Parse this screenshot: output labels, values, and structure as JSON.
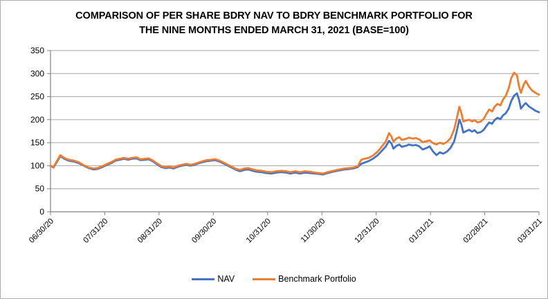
{
  "title_lines": [
    "COMPARISON OF PER SHARE BDRY NAV TO BDRY BENCHMARK PORTFOLIO FOR",
    "THE NINE MONTHS ENDED MARCH 31, 2021 (BASE=100)"
  ],
  "colors": {
    "grid": "#a6a6a6",
    "axis": "#808080",
    "nav_blue": "#4472C4",
    "benchmark_orange": "#ED7D31"
  },
  "chart_data": {
    "type": "line",
    "title": "COMPARISON OF PER SHARE BDRY NAV TO BDRY BENCHMARK PORTFOLIO FOR THE NINE MONTHS ENDED MARCH 31, 2021 (BASE=100)",
    "xlabel": "",
    "ylabel": "",
    "ylim": [
      0,
      350
    ],
    "y_ticks": [
      0,
      50,
      100,
      150,
      200,
      250,
      300,
      350
    ],
    "x_tick_labels": [
      "06/30/20",
      "07/31/20",
      "08/31/20",
      "09/30/20",
      "10/31/20",
      "11/30/20",
      "12/31/20",
      "01/31/21",
      "02/28/21",
      "03/31/21"
    ],
    "grid": true,
    "legend_position": "bottom",
    "x_base_value": 100,
    "x": [
      0.0,
      0.006,
      0.014,
      0.02,
      0.028,
      0.037,
      0.048,
      0.057,
      0.068,
      0.078,
      0.088,
      0.096,
      0.106,
      0.116,
      0.125,
      0.133,
      0.142,
      0.15,
      0.159,
      0.167,
      0.176,
      0.184,
      0.193,
      0.201,
      0.21,
      0.218,
      0.227,
      0.235,
      0.244,
      0.252,
      0.261,
      0.269,
      0.278,
      0.286,
      0.295,
      0.303,
      0.312,
      0.32,
      0.329,
      0.337,
      0.346,
      0.354,
      0.363,
      0.371,
      0.38,
      0.388,
      0.397,
      0.405,
      0.414,
      0.422,
      0.432,
      0.442,
      0.452,
      0.462,
      0.472,
      0.482,
      0.491,
      0.501,
      0.511,
      0.521,
      0.531,
      0.541,
      0.551,
      0.558,
      0.567,
      0.575,
      0.583,
      0.592,
      0.602,
      0.612,
      0.62,
      0.629,
      0.636,
      0.643,
      0.651,
      0.66,
      0.669,
      0.677,
      0.686,
      0.693,
      0.698,
      0.702,
      0.708,
      0.714,
      0.719,
      0.727,
      0.734,
      0.741,
      0.748,
      0.755,
      0.762,
      0.769,
      0.776,
      0.783,
      0.79,
      0.797,
      0.804,
      0.812,
      0.819,
      0.826,
      0.831,
      0.837,
      0.841,
      0.845,
      0.851,
      0.857,
      0.863,
      0.868,
      0.874,
      0.881,
      0.887,
      0.892,
      0.898,
      0.904,
      0.909,
      0.915,
      0.921,
      0.926,
      0.932,
      0.938,
      0.943,
      0.949,
      0.955,
      0.959,
      0.963,
      0.969,
      0.973,
      0.979,
      0.986,
      0.993,
      1.0
    ],
    "series": [
      {
        "name": "NAV",
        "color": "#4472C4",
        "values": [
          100,
          96,
          110,
          121,
          115,
          111,
          109,
          106,
          100,
          95,
          92,
          93,
          97,
          102,
          106,
          111,
          113,
          115,
          113,
          115,
          116,
          112,
          113,
          114,
          109,
          103,
          97,
          95,
          96,
          94,
          98,
          100,
          102,
          100,
          102,
          105,
          108,
          110,
          111,
          112,
          109,
          105,
          100,
          96,
          91,
          88,
          91,
          92,
          89,
          87,
          86,
          84,
          83,
          85,
          86,
          85,
          83,
          85,
          83,
          85,
          84,
          83,
          82,
          81,
          84,
          86,
          88,
          90,
          92,
          93,
          94,
          97,
          104,
          107,
          110,
          115,
          122,
          131,
          141,
          154,
          148,
          137,
          143,
          146,
          141,
          143,
          146,
          144,
          145,
          142,
          135,
          138,
          142,
          131,
          123,
          129,
          126,
          131,
          139,
          152,
          172,
          200,
          190,
          172,
          175,
          178,
          174,
          177,
          171,
          173,
          178,
          186,
          194,
          191,
          199,
          204,
          201,
          209,
          214,
          224,
          240,
          252,
          257,
          243,
          224,
          232,
          236,
          229,
          224,
          219,
          216
        ]
      },
      {
        "name": "Benchmark Portfolio",
        "color": "#ED7D31",
        "values": [
          100,
          97,
          112,
          123,
          117,
          113,
          111,
          108,
          101,
          96,
          94,
          95,
          99,
          104,
          108,
          113,
          115,
          117,
          115,
          117,
          118,
          114,
          115,
          116,
          111,
          105,
          99,
          97,
          98,
          96,
          100,
          102,
          104,
          102,
          104,
          107,
          110,
          112,
          113,
          114,
          111,
          107,
          102,
          98,
          93,
          91,
          94,
          95,
          92,
          90,
          89,
          87,
          86,
          88,
          89,
          88,
          86,
          88,
          86,
          88,
          87,
          85,
          84,
          83,
          86,
          88,
          90,
          92,
          94,
          95,
          96,
          99,
          113,
          115,
          117,
          122,
          130,
          140,
          152,
          171,
          163,
          152,
          159,
          162,
          156,
          158,
          161,
          159,
          160,
          157,
          151,
          153,
          155,
          149,
          146,
          150,
          147,
          152,
          160,
          178,
          200,
          228,
          215,
          196,
          198,
          200,
          196,
          199,
          194,
          196,
          202,
          212,
          222,
          218,
          228,
          234,
          231,
          243,
          252,
          268,
          290,
          302,
          296,
          272,
          258,
          277,
          284,
          272,
          263,
          258,
          254
        ]
      }
    ]
  }
}
